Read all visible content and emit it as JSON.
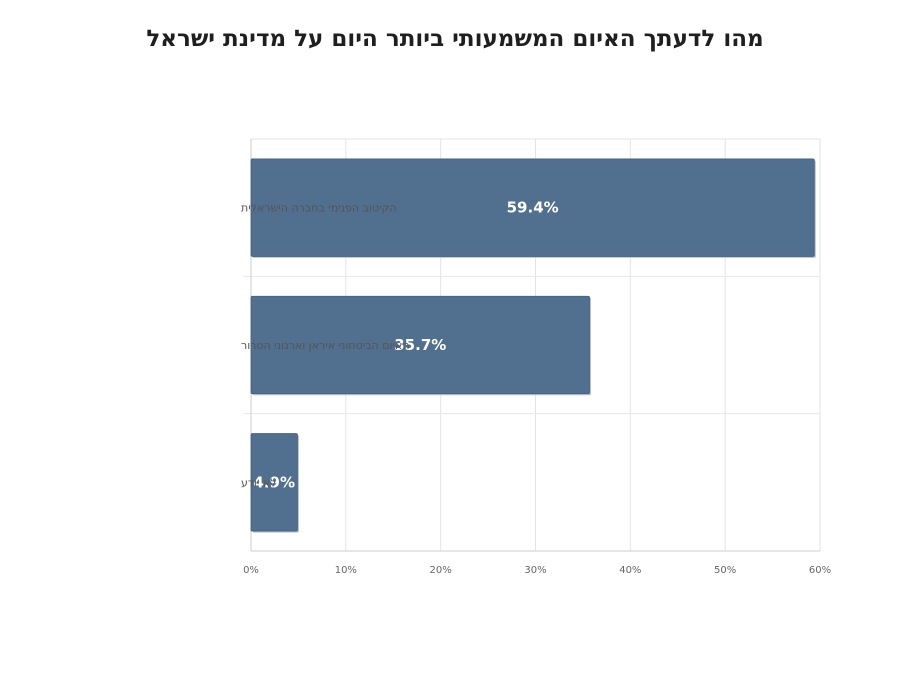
{
  "chart_data": {
    "type": "bar",
    "orientation": "horizontal",
    "title": "מהו לדעתך האיום המשמעותי ביותר היום על מדינת ישראל",
    "categories": [
      "הקיטוב הפנימי בחברה הישראלית",
      "האיום הביטחוני  איראן וארגוני הטרור",
      "לא יודע"
    ],
    "values": [
      59.4,
      35.7,
      4.9
    ],
    "data_labels": [
      "59.4%",
      "35.7%",
      "4.9%"
    ],
    "xlim": [
      0,
      60
    ],
    "xticks": [
      0,
      10,
      20,
      30,
      40,
      50,
      60
    ],
    "xtick_labels": [
      "0%",
      "10%",
      "20%",
      "30%",
      "40%",
      "50%",
      "60%"
    ],
    "xlabel": "",
    "ylabel": "",
    "grid": true,
    "legend": "none",
    "bar_color": "#516f8f"
  }
}
